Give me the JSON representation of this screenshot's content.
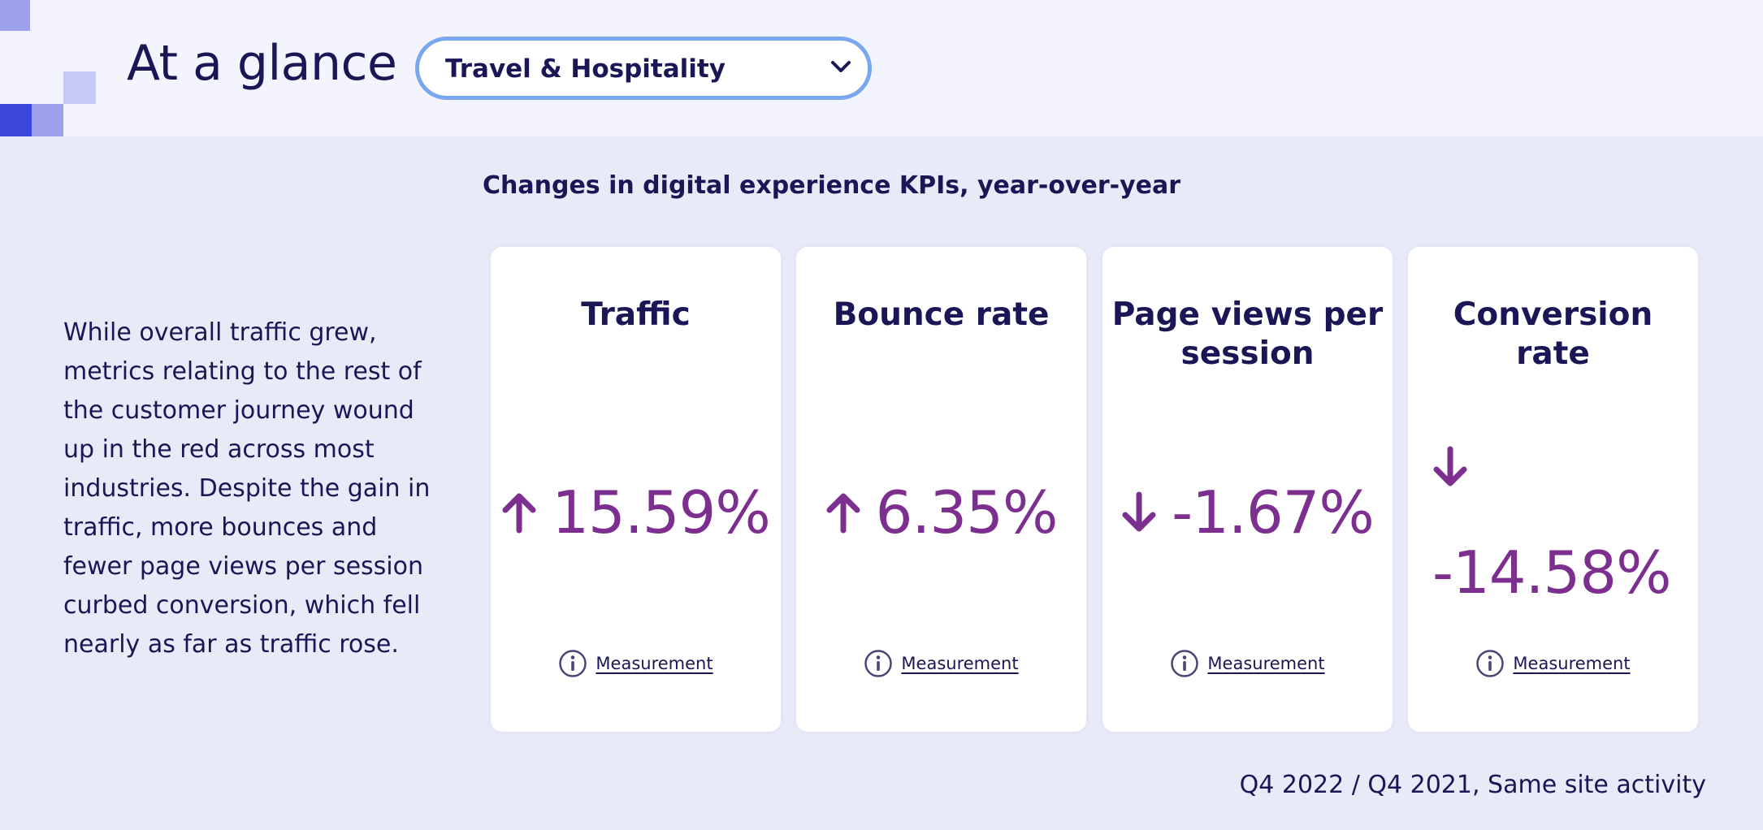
{
  "header": {
    "title": "At a glance",
    "industry_select": {
      "selected": "Travel & Hospitality",
      "icon": "chevron-down-icon"
    }
  },
  "section_title": "Changes in digital experience KPIs, year-over-year",
  "summary": "While overall traffic grew, metrics relating to the rest of the customer journey wound up in the red across most industries. Despite the gain in traffic, more bounces and fewer page views per session curbed conversion, which fell nearly as far as traffic rose.",
  "cards": [
    {
      "title": "Traffic",
      "value": "15.59%",
      "direction": "up",
      "icon": "arrow-up-icon",
      "link": "Measurement"
    },
    {
      "title": "Bounce rate",
      "value": "6.35%",
      "direction": "up",
      "icon": "arrow-up-icon",
      "link": "Measurement"
    },
    {
      "title": "Page views per session",
      "value": "-1.67%",
      "direction": "down",
      "icon": "arrow-down-icon",
      "link": "Measurement"
    },
    {
      "title": "Conversion rate",
      "value": "-14.58%",
      "direction": "down",
      "icon": "arrow-down-icon",
      "link": "Measurement"
    }
  ],
  "info_icon": "info-icon",
  "footnote": "Q4 2022 / Q4 2021, Same site activity",
  "colors": {
    "kpi_value": "#7c2f8f",
    "text": "#1b1655",
    "select_border": "#7aa8ee",
    "header_bg": "#f3f4fd",
    "page_bg": "#e9eaf8"
  }
}
